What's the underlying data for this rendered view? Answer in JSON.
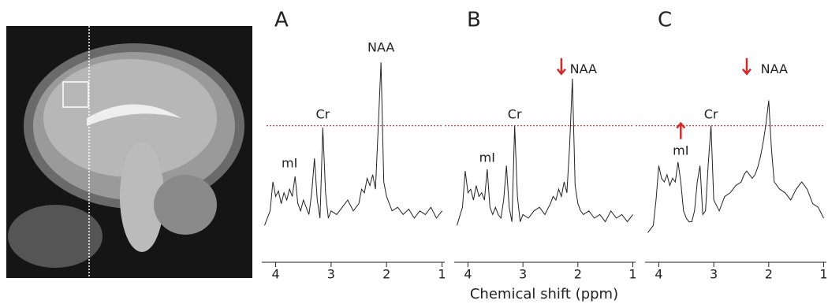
{
  "xlabel": "Chemical shift (ppm)",
  "chart_data": [
    {
      "type": "line",
      "title": "A",
      "color": "#222222",
      "reference_line": 61,
      "reference_color": "#d42a2a",
      "xlim": [
        4.25,
        0.95
      ],
      "xticks": [
        4,
        3,
        2,
        1
      ],
      "ylim": [
        0,
        110
      ],
      "x": [
        4.2,
        4.1,
        4.05,
        4.0,
        3.95,
        3.9,
        3.85,
        3.8,
        3.75,
        3.7,
        3.65,
        3.6,
        3.55,
        3.5,
        3.45,
        3.4,
        3.35,
        3.3,
        3.25,
        3.2,
        3.15,
        3.1,
        3.05,
        3.0,
        2.9,
        2.8,
        2.7,
        2.6,
        2.5,
        2.45,
        2.4,
        2.35,
        2.3,
        2.25,
        2.2,
        2.15,
        2.1,
        2.05,
        2.0,
        1.95,
        1.9,
        1.8,
        1.7,
        1.6,
        1.5,
        1.4,
        1.3,
        1.2,
        1.1,
        1.0
      ],
      "values": [
        6,
        14,
        30,
        22,
        25,
        18,
        24,
        20,
        26,
        22,
        33,
        18,
        14,
        20,
        16,
        12,
        24,
        43,
        20,
        10,
        60,
        24,
        10,
        14,
        12,
        16,
        20,
        14,
        18,
        26,
        24,
        32,
        28,
        34,
        26,
        60,
        96,
        30,
        22,
        18,
        14,
        16,
        12,
        15,
        10,
        14,
        12,
        16,
        10,
        14
      ],
      "annotations": [
        {
          "text": "NAA",
          "x": 2.1,
          "y": 104
        },
        {
          "text": "Cr",
          "x": 3.15,
          "y": 67
        },
        {
          "text": "mI",
          "x": 3.75,
          "y": 40
        }
      ],
      "arrows": []
    },
    {
      "type": "line",
      "title": "B",
      "color": "#222222",
      "reference_line": 61,
      "reference_color": "#d42a2a",
      "xlim": [
        4.25,
        0.95
      ],
      "xticks": [
        4,
        3,
        2,
        1
      ],
      "ylim": [
        0,
        110
      ],
      "x": [
        4.2,
        4.1,
        4.05,
        4.0,
        3.95,
        3.9,
        3.85,
        3.8,
        3.75,
        3.7,
        3.65,
        3.6,
        3.55,
        3.5,
        3.45,
        3.4,
        3.35,
        3.3,
        3.25,
        3.2,
        3.15,
        3.1,
        3.05,
        3.0,
        2.9,
        2.8,
        2.7,
        2.6,
        2.5,
        2.45,
        2.4,
        2.35,
        2.3,
        2.25,
        2.2,
        2.15,
        2.1,
        2.05,
        2.0,
        1.95,
        1.9,
        1.8,
        1.7,
        1.6,
        1.5,
        1.4,
        1.3,
        1.2,
        1.1,
        1.0
      ],
      "values": [
        6,
        16,
        36,
        24,
        26,
        20,
        28,
        22,
        24,
        20,
        37,
        16,
        12,
        16,
        12,
        10,
        20,
        39,
        16,
        8,
        61,
        22,
        8,
        12,
        10,
        14,
        16,
        12,
        18,
        22,
        20,
        26,
        22,
        30,
        24,
        50,
        87,
        28,
        18,
        14,
        12,
        14,
        10,
        12,
        8,
        14,
        10,
        12,
        8,
        12
      ],
      "annotations": [
        {
          "text": "NAA",
          "x": 1.9,
          "y": 92
        },
        {
          "text": "Cr",
          "x": 3.15,
          "y": 67
        },
        {
          "text": "mI",
          "x": 3.65,
          "y": 43
        }
      ],
      "arrows": [
        {
          "x": 2.3,
          "y": 94,
          "direction": "down",
          "color": "#d42a2a"
        }
      ]
    },
    {
      "type": "line",
      "title": "C",
      "color": "#222222",
      "reference_line": 61,
      "reference_color": "#d42a2a",
      "xlim": [
        4.25,
        0.95
      ],
      "xticks": [
        4,
        3,
        2,
        1
      ],
      "ylim": [
        0,
        110
      ],
      "x": [
        4.2,
        4.1,
        4.05,
        4.0,
        3.95,
        3.9,
        3.85,
        3.8,
        3.75,
        3.7,
        3.65,
        3.6,
        3.55,
        3.5,
        3.45,
        3.4,
        3.35,
        3.3,
        3.25,
        3.2,
        3.15,
        3.1,
        3.05,
        3.0,
        2.9,
        2.8,
        2.7,
        2.6,
        2.5,
        2.45,
        2.4,
        2.35,
        2.3,
        2.25,
        2.2,
        2.15,
        2.1,
        2.05,
        2.0,
        1.95,
        1.9,
        1.8,
        1.7,
        1.6,
        1.5,
        1.4,
        1.3,
        1.2,
        1.1,
        1.0
      ],
      "values": [
        2,
        6,
        20,
        39,
        32,
        30,
        34,
        28,
        32,
        30,
        41,
        30,
        14,
        10,
        8,
        8,
        14,
        30,
        39,
        12,
        14,
        40,
        61,
        20,
        14,
        22,
        24,
        28,
        30,
        34,
        36,
        34,
        32,
        34,
        38,
        44,
        52,
        62,
        75,
        48,
        30,
        26,
        24,
        20,
        26,
        30,
        26,
        18,
        16,
        10
      ],
      "annotations": [
        {
          "text": "NAA",
          "x": 1.9,
          "y": 92
        },
        {
          "text": "Cr",
          "x": 3.05,
          "y": 67
        },
        {
          "text": "mI",
          "x": 3.6,
          "y": 47
        }
      ],
      "arrows": [
        {
          "x": 2.4,
          "y": 94,
          "direction": "down",
          "color": "#d42a2a"
        },
        {
          "x": 3.6,
          "y": 58,
          "direction": "up",
          "color": "#d42a2a"
        }
      ]
    }
  ]
}
